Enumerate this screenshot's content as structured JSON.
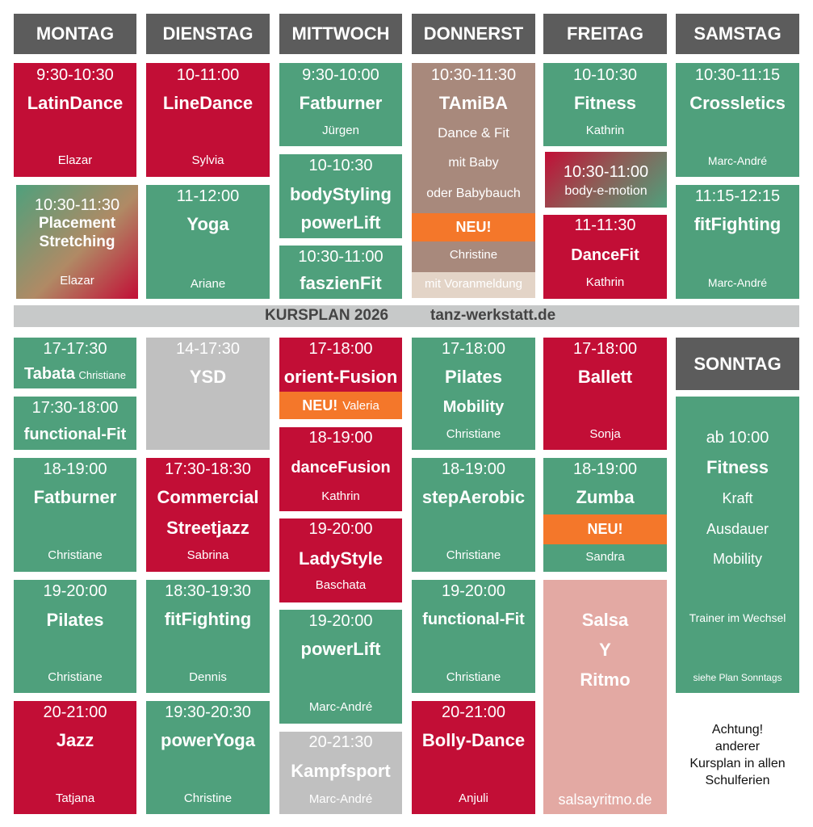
{
  "days": {
    "mon": "MONTAG",
    "tue": "DIENSTAG",
    "wed": "MITTWOCH",
    "thu": "DONNERST",
    "fri": "FREITAG",
    "sat": "SAMSTAG",
    "sun": "SONNTAG"
  },
  "banner": {
    "title": "KURSPLAN 2026",
    "site": "tanz-werkstatt.de"
  },
  "mon": {
    "c1": {
      "time": "9:30-10:30",
      "name": "LatinDance",
      "trainer": "Elazar"
    },
    "c2": {
      "time": "10:30-11:30",
      "name1": "Placement",
      "name2": "Stretching",
      "trainer": "Elazar"
    },
    "c3": {
      "time": "17-17:30",
      "name": "Tabata",
      "trainer": "Christiane"
    },
    "c4": {
      "time": "17:30-18:00",
      "name": "functional-Fit"
    },
    "c5": {
      "time": "18-19:00",
      "name": "Fatburner",
      "trainer": "Christiane"
    },
    "c6": {
      "time": "19-20:00",
      "name": "Pilates",
      "trainer": "Christiane"
    },
    "c7": {
      "time": "20-21:00",
      "name": "Jazz",
      "trainer": "Tatjana"
    }
  },
  "tue": {
    "c1": {
      "time": "10-11:00",
      "name": "LineDance",
      "trainer": "Sylvia"
    },
    "c2": {
      "time": "11-12:00",
      "name": "Yoga",
      "trainer": "Ariane"
    },
    "c3": {
      "time": "14-17:30",
      "name": "YSD"
    },
    "c4": {
      "time": "17:30-18:30",
      "name1": "Commercial",
      "name2": "Streetjazz",
      "trainer": "Sabrina"
    },
    "c5": {
      "time": "18:30-19:30",
      "name": "fitFighting",
      "trainer": "Dennis"
    },
    "c6": {
      "time": "19:30-20:30",
      "name": "powerYoga",
      "trainer": "Christine"
    }
  },
  "wed": {
    "c1": {
      "time": "9:30-10:00",
      "name": "Fatburner",
      "trainer": "Jürgen"
    },
    "c2": {
      "time": "10-10:30",
      "name1": "bodyStyling",
      "name2": "powerLift"
    },
    "c3": {
      "time": "10:30-11:00",
      "name": "faszienFit"
    },
    "c4": {
      "time": "17-18:00",
      "name": "orient-Fusion",
      "neu": "NEU!",
      "trainer": "Valeria"
    },
    "c5": {
      "time": "18-19:00",
      "name": "danceFusion",
      "trainer": "Kathrin"
    },
    "c6": {
      "time": "19-20:00",
      "name": "LadyStyle",
      "trainer": "Baschata"
    },
    "c7": {
      "time": "19-20:00",
      "name": "powerLift",
      "trainer": "Marc-André"
    },
    "c8": {
      "time": "20-21:30",
      "name": "Kampfsport",
      "trainer": "Marc-André"
    }
  },
  "thu": {
    "c1": {
      "time": "10:30-11:30",
      "name": "TAmiBA",
      "l1": "Dance & Fit",
      "l2": "mit Baby",
      "l3": "oder Babybauch",
      "neu": "NEU!",
      "trainer": "Christine",
      "note": "mit Voranmeldung"
    },
    "c2": {
      "time": "17-18:00",
      "name1": "Pilates",
      "name2": "Mobility",
      "trainer": "Christiane"
    },
    "c3": {
      "time": "18-19:00",
      "name": "stepAerobic",
      "trainer": "Christiane"
    },
    "c4": {
      "time": "19-20:00",
      "name": "functional-Fit",
      "trainer": "Christiane"
    },
    "c5": {
      "time": "20-21:00",
      "name": "Bolly-Dance",
      "trainer": "Anjuli"
    }
  },
  "fri": {
    "c1": {
      "time": "10-10:30",
      "name": "Fitness",
      "trainer": "Kathrin"
    },
    "c2": {
      "time": "10:30-11:00",
      "name": "body-e-motion"
    },
    "c3": {
      "time": "11-11:30",
      "name": "DanceFit",
      "trainer": "Kathrin"
    },
    "c4": {
      "time": "17-18:00",
      "name": "Ballett",
      "trainer": "Sonja"
    },
    "c5": {
      "time": "18-19:00",
      "name": "Zumba",
      "neu": "NEU!",
      "trainer": "Sandra"
    },
    "c6": {
      "l1": "Salsa",
      "l2": "Y",
      "l3": "Ritmo",
      "site": "salsayritmo.de"
    }
  },
  "sat": {
    "c1": {
      "time": "10:30-11:15",
      "name": "Crossletics",
      "trainer": "Marc-André"
    },
    "c2": {
      "time": "11:15-12:15",
      "name": "fitFighting",
      "trainer": "Marc-André"
    }
  },
  "sun": {
    "c1": {
      "time": "ab 10:00",
      "name": "Fitness",
      "l1": "Kraft",
      "l2": "Ausdauer",
      "l3": "Mobility",
      "trainer": "Trainer im Wechsel",
      "plan": "siehe Plan Sonntags"
    },
    "notice": {
      "l1": "Achtung!",
      "l2": "anderer",
      "l3": "Kursplan in allen",
      "l4": "Schulferien"
    }
  },
  "colors": {
    "green": "#4fa07c",
    "red": "#c20e36",
    "grey": "#c0c0c0",
    "header": "#5c5c5c",
    "orange": "#f4772a",
    "brown": "#a8897c",
    "pink": "#e3a9a3"
  }
}
